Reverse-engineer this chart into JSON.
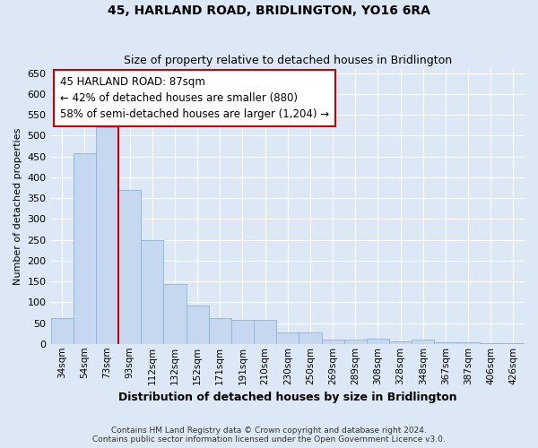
{
  "title": "45, HARLAND ROAD, BRIDLINGTON, YO16 6RA",
  "subtitle": "Size of property relative to detached houses in Bridlington",
  "xlabel": "Distribution of detached houses by size in Bridlington",
  "ylabel": "Number of detached properties",
  "categories": [
    "34sqm",
    "54sqm",
    "73sqm",
    "93sqm",
    "112sqm",
    "132sqm",
    "152sqm",
    "171sqm",
    "191sqm",
    "210sqm",
    "230sqm",
    "250sqm",
    "269sqm",
    "289sqm",
    "308sqm",
    "328sqm",
    "348sqm",
    "367sqm",
    "387sqm",
    "406sqm",
    "426sqm"
  ],
  "values": [
    62,
    458,
    520,
    370,
    250,
    143,
    93,
    62,
    57,
    57,
    27,
    27,
    10,
    10,
    12,
    5,
    10,
    3,
    3,
    2,
    2
  ],
  "bar_color": "#c5d8f0",
  "bar_edge_color": "#8ab4d8",
  "vline_color": "#cc0000",
  "vline_x_index": 2.5,
  "annotation_text": "45 HARLAND ROAD: 87sqm\n← 42% of detached houses are smaller (880)\n58% of semi-detached houses are larger (1,204) →",
  "annotation_box_facecolor": "white",
  "annotation_box_edgecolor": "#cc0000",
  "ylim": [
    0,
    660
  ],
  "yticks": [
    0,
    50,
    100,
    150,
    200,
    250,
    300,
    350,
    400,
    450,
    500,
    550,
    600,
    650
  ],
  "footer_text": "Contains HM Land Registry data © Crown copyright and database right 2024.\nContains public sector information licensed under the Open Government Licence v3.0.",
  "background_color": "#dce8f5",
  "grid_color": "#ffffff",
  "title_fontsize": 10,
  "subtitle_fontsize": 9,
  "ylabel_fontsize": 8,
  "xlabel_fontsize": 9,
  "tick_fontsize": 8,
  "xtick_fontsize": 7.5,
  "annotation_fontsize": 8.5,
  "footer_fontsize": 6.5
}
